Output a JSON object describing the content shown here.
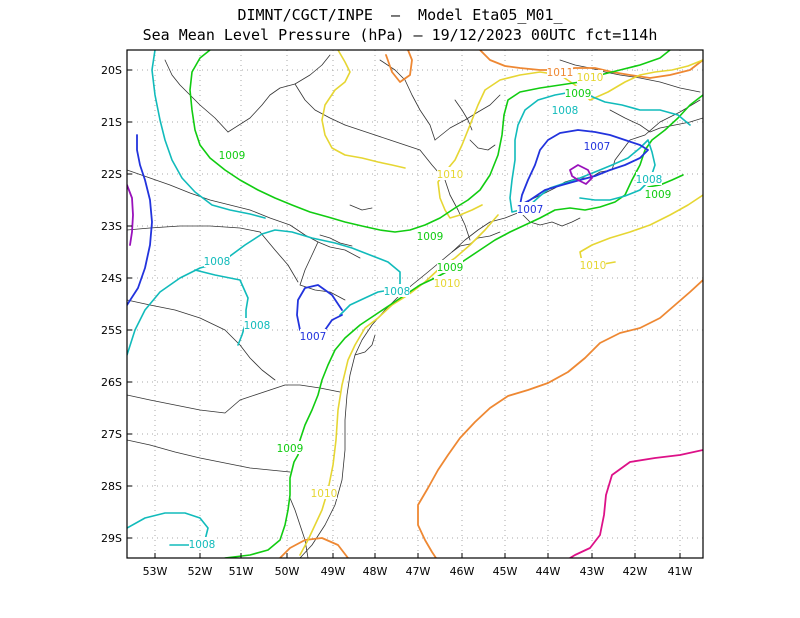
{
  "title_line1": "DIMNT/CGCT/INPE  —  Model Eta05_M01_",
  "title_line2": "Sea Mean Level Pressure (hPa) — 19/12/2023 00UTC fct=114h",
  "lat_ticks": [
    "20S",
    "21S",
    "22S",
    "23S",
    "24S",
    "25S",
    "26S",
    "27S",
    "28S",
    "29S"
  ],
  "lon_ticks": [
    "53W",
    "52W",
    "51W",
    "50W",
    "49W",
    "48W",
    "47W",
    "46W",
    "45W",
    "44W",
    "43W",
    "42W",
    "41W"
  ],
  "colors": {
    "c1007": "#2233dd",
    "c1008": "#11bbbb",
    "c1009": "#11cc11",
    "c1010": "#e6d633",
    "c1011": "#ee8833",
    "c1012": "#dd1188",
    "c1006": "#9911bb"
  },
  "contour_labels": [
    {
      "text": "1011",
      "color": "c1011"
    },
    {
      "text": "1010",
      "color": "c1010"
    },
    {
      "text": "1009",
      "color": "c1009"
    },
    {
      "text": "1008",
      "color": "c1008"
    },
    {
      "text": "1007",
      "color": "c1007"
    },
    {
      "text": "1009",
      "color": "c1009"
    },
    {
      "text": "1010",
      "color": "c1010"
    },
    {
      "text": "1008",
      "color": "c1008"
    },
    {
      "text": "1009",
      "color": "c1009"
    },
    {
      "text": "1007",
      "color": "c1007"
    },
    {
      "text": "1009",
      "color": "c1009"
    },
    {
      "text": "1008",
      "color": "c1008"
    },
    {
      "text": "1010",
      "color": "c1010"
    },
    {
      "text": "1009",
      "color": "c1009"
    },
    {
      "text": "1008",
      "color": "c1008"
    },
    {
      "text": "1010",
      "color": "c1010"
    },
    {
      "text": "1008",
      "color": "c1008"
    },
    {
      "text": "1007",
      "color": "c1007"
    },
    {
      "text": "1009",
      "color": "c1009"
    },
    {
      "text": "1010",
      "color": "c1010"
    },
    {
      "text": "1008",
      "color": "c1008"
    }
  ]
}
